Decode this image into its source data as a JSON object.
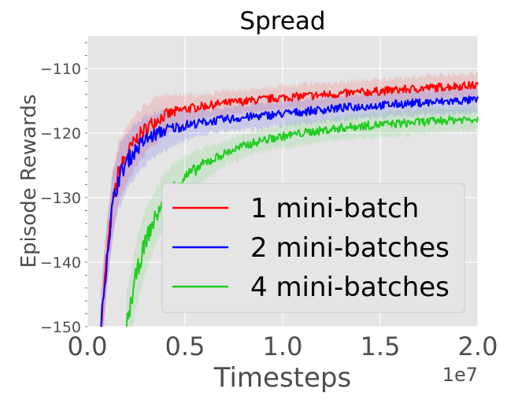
{
  "chart_data": {
    "type": "line",
    "title": "Spread",
    "xlabel": "Timesteps",
    "ylabel": "Episode Rewards",
    "x_offset_label": "1e7",
    "xlim": [
      0,
      2.0
    ],
    "ylim": [
      -150,
      -105
    ],
    "x_ticks": [
      "0.0",
      "0.5",
      "1.0",
      "1.5",
      "2.0"
    ],
    "x_tick_values": [
      0.0,
      0.5,
      1.0,
      1.5,
      2.0
    ],
    "y_ticks": [
      "−110",
      "−120",
      "−130",
      "−140",
      "−150"
    ],
    "y_tick_values": [
      -110,
      -120,
      -130,
      -140,
      -150
    ],
    "grid": true,
    "legend_position": "lower-right",
    "series": [
      {
        "name": "1 mini-batch",
        "color": "#ff0000",
        "x": [
          0.07,
          0.1,
          0.13,
          0.16,
          0.2,
          0.25,
          0.3,
          0.35,
          0.4,
          0.5,
          0.6,
          0.7,
          0.8,
          0.9,
          1.0,
          1.1,
          1.2,
          1.3,
          1.4,
          1.5,
          1.6,
          1.7,
          1.8,
          1.9,
          2.0
        ],
        "y": [
          -150,
          -139,
          -131,
          -126,
          -123.5,
          -121,
          -119.3,
          -118,
          -117.2,
          -116.3,
          -115.8,
          -115.4,
          -115.1,
          -114.8,
          -114.5,
          -114.3,
          -114.1,
          -113.9,
          -113.7,
          -113.5,
          -113.3,
          -113.1,
          -112.9,
          -112.7,
          -112.6
        ]
      },
      {
        "name": "2 mini-batches",
        "color": "#0000ff",
        "x": [
          0.07,
          0.1,
          0.13,
          0.16,
          0.2,
          0.25,
          0.3,
          0.35,
          0.4,
          0.5,
          0.6,
          0.7,
          0.8,
          0.9,
          1.0,
          1.1,
          1.2,
          1.3,
          1.4,
          1.5,
          1.6,
          1.7,
          1.8,
          1.9,
          2.0
        ],
        "y": [
          -150,
          -139,
          -131,
          -127,
          -124.5,
          -122.5,
          -121,
          -120.2,
          -119.5,
          -118.8,
          -118.3,
          -117.9,
          -117.6,
          -117.3,
          -117,
          -116.7,
          -116.4,
          -116.1,
          -115.9,
          -115.7,
          -115.5,
          -115.3,
          -115.2,
          -115.0,
          -114.9
        ]
      },
      {
        "name": "4 mini-batches",
        "color": "#22cc22",
        "x": [
          0.2,
          0.25,
          0.3,
          0.35,
          0.4,
          0.45,
          0.5,
          0.6,
          0.7,
          0.8,
          0.9,
          1.0,
          1.1,
          1.2,
          1.3,
          1.4,
          1.5,
          1.6,
          1.7,
          1.8,
          1.9,
          2.0
        ],
        "y": [
          -150,
          -142,
          -136.5,
          -133,
          -130,
          -128.2,
          -126.8,
          -124.7,
          -123.2,
          -122,
          -121.1,
          -120.5,
          -120,
          -119.6,
          -119.2,
          -118.9,
          -118.7,
          -118.5,
          -118.3,
          -118.1,
          -117.9,
          -117.8
        ]
      }
    ]
  }
}
